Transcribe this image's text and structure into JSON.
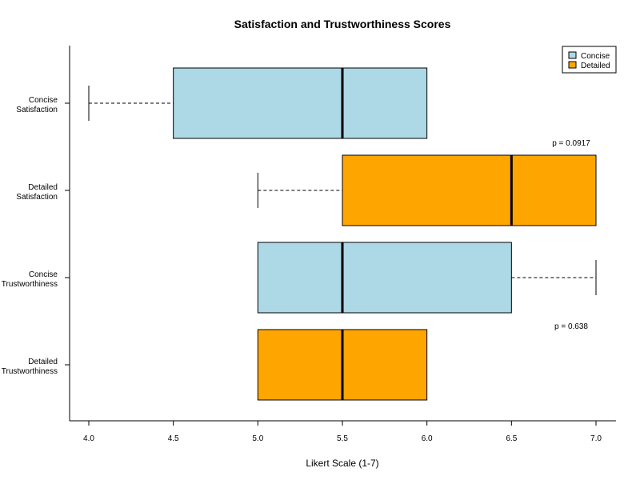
{
  "chart_data": {
    "type": "box",
    "orientation": "horizontal",
    "title": "Satisfaction and Trustworthiness Scores",
    "xlabel": "Likert Scale (1-7)",
    "ylabel": "",
    "xlim": [
      3.9,
      7.12
    ],
    "xticks": [
      "4.0",
      "4.5",
      "5.0",
      "5.5",
      "6.0",
      "6.5",
      "7.0"
    ],
    "grid": false,
    "legend_position": "top-right",
    "legend": [
      {
        "name": "Concise",
        "color": "#ADD8E6"
      },
      {
        "name": "Detailed",
        "color": "#FFA500"
      }
    ],
    "boxes": [
      {
        "label_line1": "Concise",
        "label_line2": "Satisfaction",
        "group": "Concise",
        "color": "#ADD8E6",
        "whisker_low": 4.0,
        "q1": 4.5,
        "median": 5.5,
        "q3": 6.0,
        "whisker_high": 6.0
      },
      {
        "label_line1": "Detailed",
        "label_line2": "Satisfaction",
        "group": "Detailed",
        "color": "#FFA500",
        "whisker_low": 5.0,
        "q1": 5.5,
        "median": 6.5,
        "q3": 7.0,
        "whisker_high": 7.0
      },
      {
        "label_line1": "Concise",
        "label_line2": "Trustworthiness",
        "group": "Concise",
        "color": "#ADD8E6",
        "whisker_low": 5.0,
        "q1": 5.0,
        "median": 5.5,
        "q3": 6.5,
        "whisker_high": 7.0
      },
      {
        "label_line1": "Detailed",
        "label_line2": "Trustworthiness",
        "group": "Detailed",
        "color": "#FFA500",
        "whisker_low": 5.0,
        "q1": 5.0,
        "median": 5.5,
        "q3": 6.0,
        "whisker_high": 6.0
      }
    ],
    "annotations": [
      {
        "text": "p = 0.0917",
        "between": "Satisfaction"
      },
      {
        "text": "p = 0.638",
        "between": "Trustworthiness"
      }
    ]
  }
}
